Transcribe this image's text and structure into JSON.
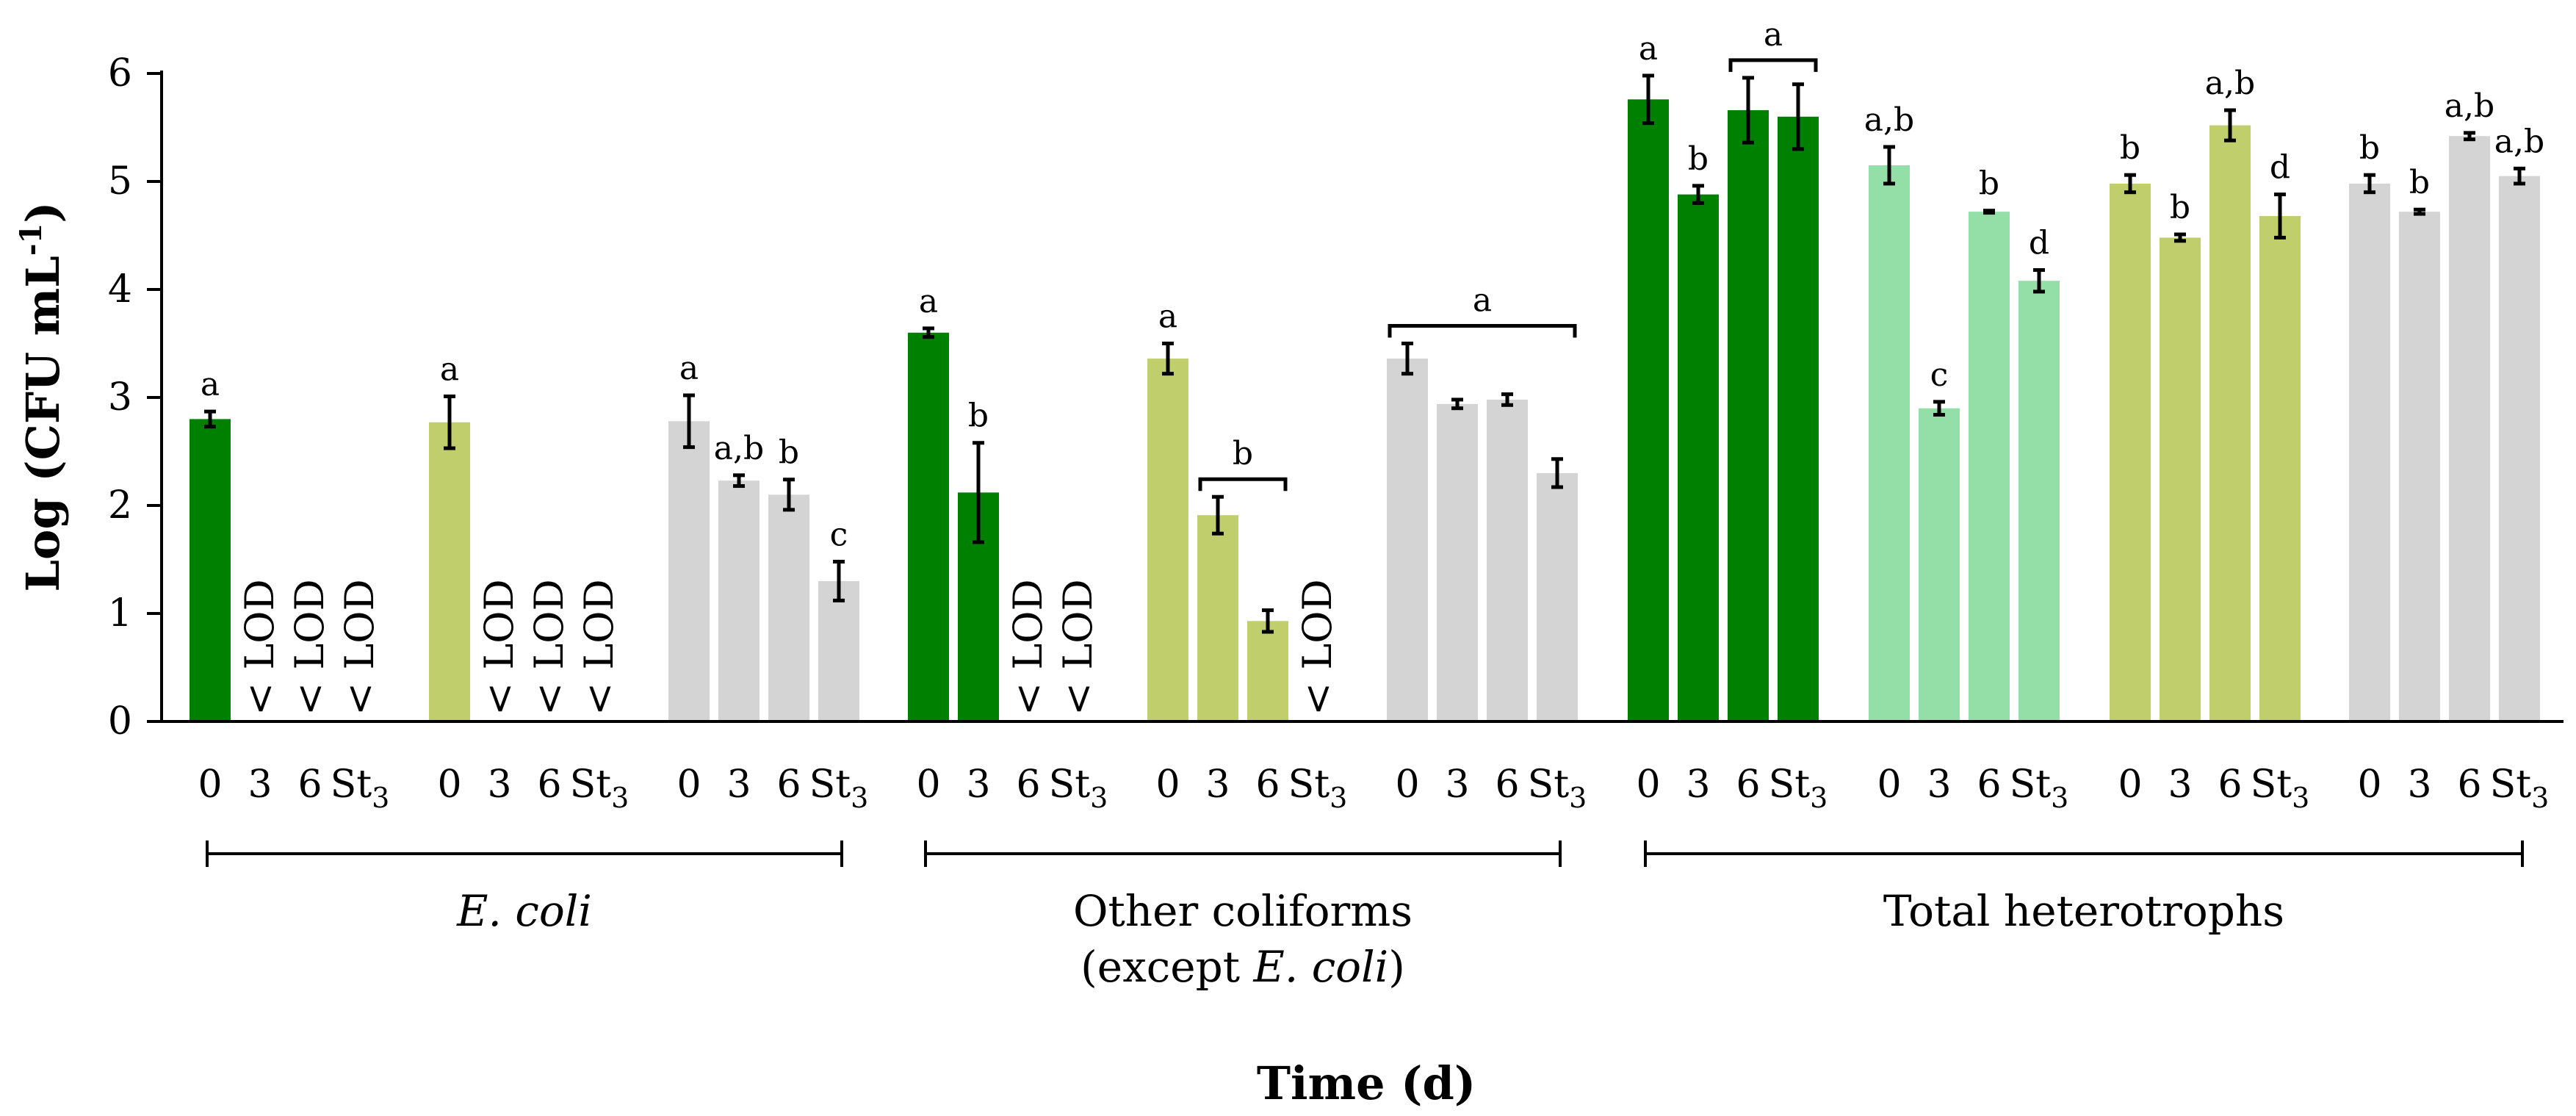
{
  "chart_data": {
    "type": "bar",
    "title": "",
    "ylabel": "Log (CFU mL",
    "ylabel_sup": "-1",
    "ylabel_end": ")",
    "xlabel": "Time (d)",
    "ylim": [
      0,
      6
    ],
    "yticks": [
      0,
      1,
      2,
      3,
      4,
      5,
      6
    ],
    "grid": false,
    "colors": {
      "darkgreen": "#008000",
      "olive": "#c0cf6c",
      "mint": "#94dfa7",
      "grey": "#d4d4d4"
    },
    "lod_text": "< LOD",
    "groups": [
      {
        "label": "E. coli",
        "italic": true
      },
      {
        "label": "Other coliforms",
        "label2_pre": "(except ",
        "label2_ital": "E. coli",
        "label2_post": ")"
      },
      {
        "label": "Total heterotrophs"
      }
    ],
    "clusters": [
      {
        "color": "darkgreen",
        "bars": [
          {
            "x": "0",
            "value": 2.8,
            "err": 0.07,
            "label": "a"
          },
          {
            "x": "3",
            "value": null,
            "lod": true
          },
          {
            "x": "6",
            "value": null,
            "lod": true
          },
          {
            "x": "St3",
            "value": null,
            "lod": true
          }
        ]
      },
      {
        "color": "olive",
        "bars": [
          {
            "x": "0",
            "value": 2.77,
            "err": 0.24,
            "label": "a"
          },
          {
            "x": "3",
            "value": null,
            "lod": true
          },
          {
            "x": "6",
            "value": null,
            "lod": true
          },
          {
            "x": "St3",
            "value": null,
            "lod": true
          }
        ]
      },
      {
        "color": "grey",
        "bars": [
          {
            "x": "0",
            "value": 2.78,
            "err": 0.24,
            "label": "a"
          },
          {
            "x": "3",
            "value": 2.23,
            "err": 0.05,
            "label": "a,b"
          },
          {
            "x": "6",
            "value": 2.1,
            "err": 0.14,
            "label": "b"
          },
          {
            "x": "St3",
            "value": 1.3,
            "err": 0.18,
            "label": "c"
          }
        ]
      },
      {
        "color": "darkgreen",
        "bars": [
          {
            "x": "0",
            "value": 3.6,
            "err": 0.04,
            "label": "a"
          },
          {
            "x": "3",
            "value": 2.12,
            "err": 0.46,
            "label": "b"
          },
          {
            "x": "6",
            "value": null,
            "lod": true
          },
          {
            "x": "St3",
            "value": null,
            "lod": true
          }
        ]
      },
      {
        "color": "olive",
        "bars": [
          {
            "x": "0",
            "value": 3.36,
            "err": 0.14,
            "label": "a"
          },
          {
            "x": "3",
            "value": 1.91,
            "err": 0.17
          },
          {
            "x": "6",
            "value": 0.93,
            "err": 0.1
          },
          {
            "x": "St3",
            "value": null,
            "lod": true
          }
        ],
        "bracket": {
          "from": 1,
          "to": 2,
          "label": "b"
        }
      },
      {
        "color": "grey",
        "bars": [
          {
            "x": "0",
            "value": 3.36,
            "err": 0.14
          },
          {
            "x": "3",
            "value": 2.94,
            "err": 0.04
          },
          {
            "x": "6",
            "value": 2.98,
            "err": 0.05
          },
          {
            "x": "St3",
            "value": 2.3,
            "err": 0.13
          }
        ],
        "bracket": {
          "from": 0,
          "to": 3,
          "label": "a"
        }
      },
      {
        "color": "darkgreen",
        "bars": [
          {
            "x": "0",
            "value": 5.76,
            "err": 0.22,
            "label": "a"
          },
          {
            "x": "3",
            "value": 4.88,
            "err": 0.08,
            "label": "b"
          },
          {
            "x": "6",
            "value": 5.66,
            "err": 0.3
          },
          {
            "x": "St3",
            "value": 5.6,
            "err": 0.3
          }
        ],
        "bracket": {
          "from": 2,
          "to": 3,
          "label": "a"
        }
      },
      {
        "color": "mint",
        "bars": [
          {
            "x": "0",
            "value": 5.15,
            "err": 0.17,
            "label": "a,b"
          },
          {
            "x": "3",
            "value": 2.9,
            "err": 0.06,
            "label": "c"
          },
          {
            "x": "6",
            "value": 4.72,
            "err": 0.01,
            "label": "b"
          },
          {
            "x": "St3",
            "value": 4.08,
            "err": 0.1,
            "label": "d"
          }
        ]
      },
      {
        "color": "olive",
        "bars": [
          {
            "x": "0",
            "value": 4.98,
            "err": 0.08,
            "label": "b"
          },
          {
            "x": "3",
            "value": 4.48,
            "err": 0.03,
            "label": "b"
          },
          {
            "x": "6",
            "value": 5.52,
            "err": 0.14,
            "label": "a,b"
          },
          {
            "x": "St3",
            "value": 4.68,
            "err": 0.2,
            "label": "d"
          }
        ]
      },
      {
        "color": "grey",
        "bars": [
          {
            "x": "0",
            "value": 4.98,
            "err": 0.08,
            "label": "b"
          },
          {
            "x": "3",
            "value": 4.72,
            "err": 0.02,
            "label": "b"
          },
          {
            "x": "6",
            "value": 5.42,
            "err": 0.03,
            "label": "a,b"
          },
          {
            "x": "St3",
            "value": 5.05,
            "err": 0.07,
            "label": "a,b"
          }
        ]
      }
    ]
  }
}
